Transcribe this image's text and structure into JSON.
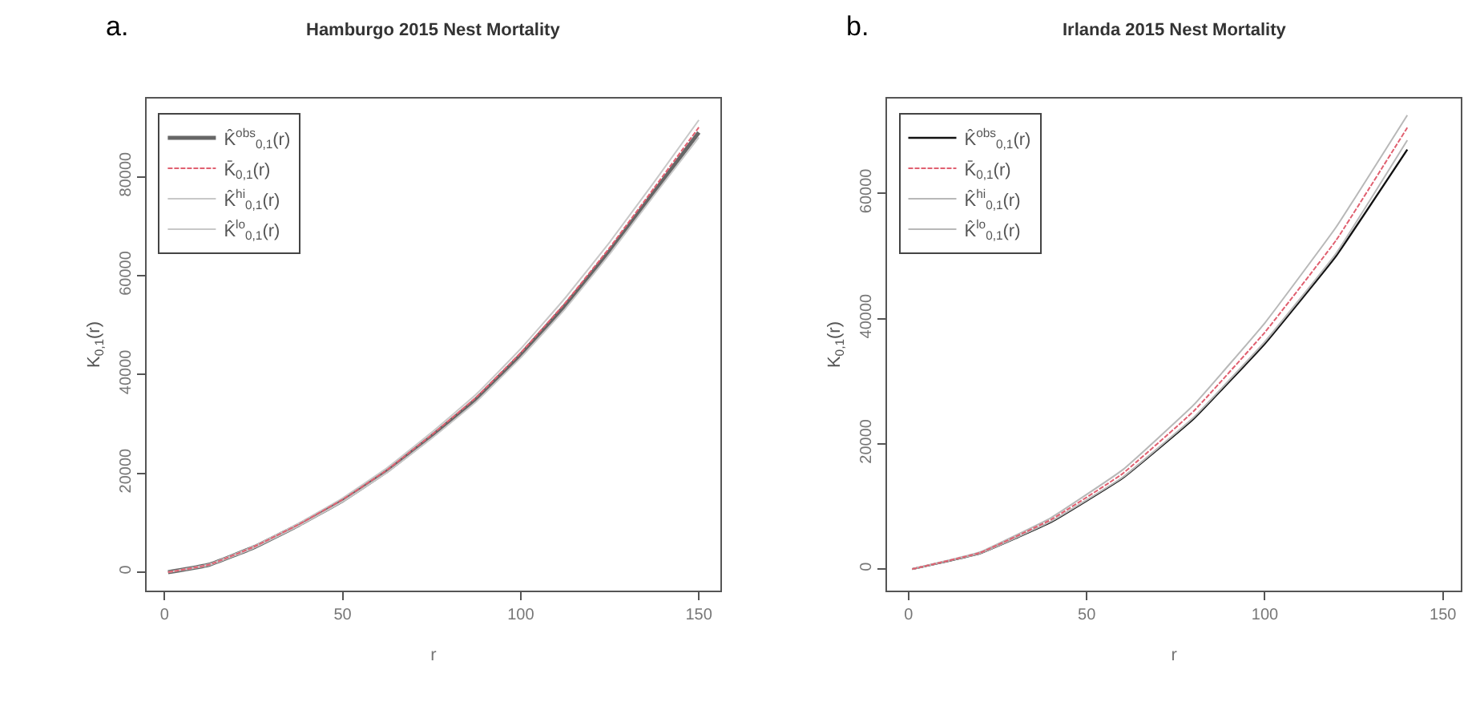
{
  "chart_data": [
    {
      "type": "line",
      "title": "Hamburgo 2015 Nest Mortality",
      "annotations": [
        "a."
      ],
      "xlabel": "r",
      "ylabel": "K$_{0,1}$(r)",
      "legend": "top left",
      "marker": "none",
      "x": [
        1,
        12.5,
        25,
        37.5,
        50,
        62.5,
        75,
        87.5,
        100,
        112.5,
        125,
        137.5,
        150
      ],
      "xlim": [
        -5,
        156
      ],
      "xticks": [
        0,
        50,
        100,
        150
      ],
      "ylim": [
        -3800,
        95900
      ],
      "yticks": [
        0,
        20000,
        40000,
        60000,
        80000
      ],
      "series": [
        {
          "name": "K̂$^{obs}$$_{0,1}$(r)",
          "color": "#666666",
          "line_style": "solid",
          "values": [
            0,
            1500,
            5000,
            9500,
            14500,
            20500,
            27500,
            35000,
            44000,
            54000,
            65000,
            77000,
            89000
          ]
        },
        {
          "name": "K̄$_{0,1}$(r)",
          "color": "#e06070",
          "line_style": "dashed",
          "values": [
            0,
            1500,
            5100,
            9600,
            14700,
            20700,
            27800,
            35400,
            44400,
            54500,
            65700,
            77800,
            90000
          ]
        },
        {
          "name": "K̂$^{hi}$$_{0,1}$(r)",
          "color": "#c8c8c8",
          "line_style": "solid",
          "values": [
            0,
            1600,
            5200,
            9800,
            15000,
            21100,
            28300,
            36000,
            45200,
            55500,
            66800,
            79000,
            91500
          ]
        },
        {
          "name": "K̂$^{lo}$$_{0,1}$(r)",
          "color": "#c8c8c8",
          "line_style": "solid",
          "values": [
            0,
            1400,
            4900,
            9300,
            14300,
            20200,
            27100,
            34500,
            43400,
            53300,
            64400,
            76300,
            88000
          ]
        }
      ]
    },
    {
      "type": "line",
      "title": "Irlanda 2015 Nest Mortality",
      "annotations": [
        "b."
      ],
      "xlabel": "r",
      "ylabel": "K$_{0,1}$(r)",
      "legend": "top left",
      "marker": "none",
      "x": [
        1,
        20,
        40,
        60,
        80,
        100,
        120,
        140
      ],
      "xlim": [
        -6,
        155
      ],
      "xticks": [
        0,
        50,
        100,
        150
      ],
      "ylim": [
        -3500,
        75200
      ],
      "yticks": [
        0,
        20000,
        40000,
        60000
      ],
      "series": [
        {
          "name": "K̂$^{obs}$$_{0,1}$(r)",
          "color": "#111111",
          "line_style": "solid",
          "values": [
            0,
            2500,
            7500,
            14500,
            24000,
            36000,
            50000,
            67000
          ]
        },
        {
          "name": "K̄$_{0,1}$(r)",
          "color": "#e06070",
          "line_style": "dashed",
          "values": [
            0,
            2600,
            7900,
            15200,
            25200,
            37800,
            52500,
            70500
          ]
        },
        {
          "name": "K̂$^{hi}$$_{0,1}$(r)",
          "color": "#b8b8b8",
          "line_style": "solid",
          "values": [
            0,
            2700,
            8200,
            15800,
            26200,
            39300,
            54600,
            72500
          ]
        },
        {
          "name": "K̂$^{lo}$$_{0,1}$(r)",
          "color": "#b8b8b8",
          "line_style": "solid",
          "values": [
            0,
            2500,
            7600,
            14600,
            24200,
            36300,
            50400,
            68500
          ]
        }
      ]
    }
  ]
}
